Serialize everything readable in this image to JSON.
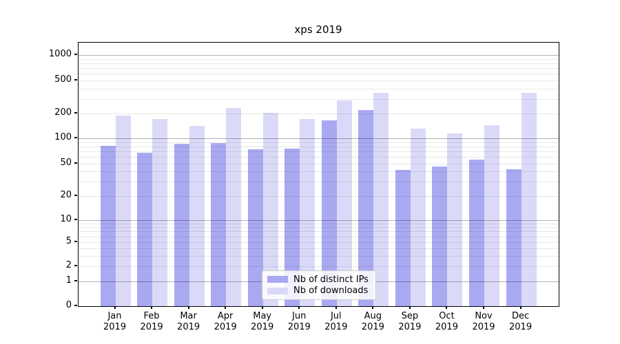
{
  "chart_data": {
    "type": "bar",
    "title": "xps 2019",
    "categories": [
      "Jan",
      "Feb",
      "Mar",
      "Apr",
      "May",
      "Jun",
      "Jul",
      "Aug",
      "Sep",
      "Oct",
      "Nov",
      "Dec"
    ],
    "year": "2019",
    "series": [
      {
        "name": "Nb of distinct IPs",
        "color": "#a9a9f2",
        "values": [
          82,
          68,
          86,
          88,
          74,
          75,
          166,
          220,
          42,
          46,
          56,
          43
        ]
      },
      {
        "name": "Nb of downloads",
        "color": "#dadaf8",
        "values": [
          190,
          172,
          142,
          233,
          203,
          172,
          286,
          355,
          131,
          114,
          144,
          353
        ]
      }
    ],
    "xlabel": "",
    "ylabel": "",
    "yscale": "symlog",
    "yticks": [
      0,
      1,
      2,
      5,
      10,
      20,
      50,
      100,
      200,
      500,
      1000
    ],
    "ylim": [
      0,
      1400
    ],
    "grid": "horizontal major+minor, drawn above bars",
    "legend_position": "lower center"
  }
}
